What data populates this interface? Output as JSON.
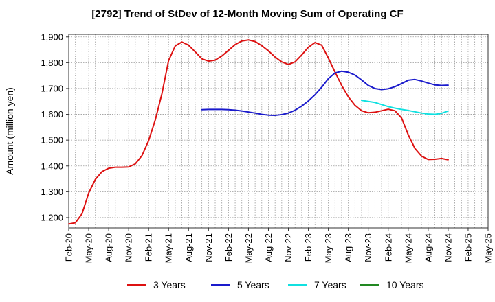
{
  "chart_data": {
    "type": "line",
    "title": "[2792]  Trend of StDev of 12-Month Moving Sum of Operating CF",
    "ylabel": "Amount (million yen)",
    "xlabel": "",
    "ylim": [
      1160,
      1910
    ],
    "y_ticks": [
      1200,
      1300,
      1400,
      1500,
      1600,
      1700,
      1800,
      1900
    ],
    "y_tick_labels": [
      "1,200",
      "1,300",
      "1,400",
      "1,500",
      "1,600",
      "1,700",
      "1,800",
      "1,900"
    ],
    "x_tick_labels": [
      "Feb-20",
      "May-20",
      "Aug-20",
      "Nov-20",
      "Feb-21",
      "May-21",
      "Aug-21",
      "Nov-21",
      "Feb-22",
      "May-22",
      "Aug-22",
      "Nov-22",
      "Feb-23",
      "May-23",
      "Aug-23",
      "Nov-23",
      "Feb-24",
      "May-24",
      "Aug-24",
      "Nov-24",
      "Feb-25",
      "May-25"
    ],
    "x_start": "Feb-20",
    "x_end": "May-25",
    "grid": true,
    "legend_position": "bottom",
    "series": [
      {
        "name": "3 Years",
        "color": "#dd1111",
        "start": "Feb-20",
        "values": [
          1175,
          1180,
          1215,
          1295,
          1348,
          1378,
          1391,
          1395,
          1395,
          1396,
          1408,
          1440,
          1498,
          1578,
          1680,
          1808,
          1865,
          1880,
          1868,
          1842,
          1815,
          1806,
          1810,
          1826,
          1848,
          1870,
          1884,
          1888,
          1882,
          1866,
          1846,
          1822,
          1803,
          1793,
          1803,
          1830,
          1860,
          1878,
          1868,
          1818,
          1764,
          1712,
          1668,
          1635,
          1614,
          1606,
          1608,
          1614,
          1620,
          1614,
          1586,
          1521,
          1468,
          1438,
          1425,
          1426,
          1429,
          1424
        ]
      },
      {
        "name": "5 Years",
        "color": "#1a1acc",
        "start": "Feb-20",
        "values": [
          null,
          null,
          null,
          null,
          null,
          null,
          null,
          null,
          null,
          null,
          null,
          null,
          null,
          null,
          null,
          null,
          null,
          null,
          null,
          null,
          1618,
          1619,
          1619,
          1619,
          1618,
          1616,
          1613,
          1609,
          1605,
          1600,
          1597,
          1596,
          1599,
          1605,
          1616,
          1632,
          1652,
          1676,
          1705,
          1738,
          1760,
          1767,
          1763,
          1752,
          1733,
          1712,
          1700,
          1696,
          1699,
          1707,
          1719,
          1732,
          1735,
          1729,
          1721,
          1714,
          1712,
          1713
        ]
      },
      {
        "name": "7 Years",
        "color": "#11e0e0",
        "start": "Feb-20",
        "values": [
          null,
          null,
          null,
          null,
          null,
          null,
          null,
          null,
          null,
          null,
          null,
          null,
          null,
          null,
          null,
          null,
          null,
          null,
          null,
          null,
          null,
          null,
          null,
          null,
          null,
          null,
          null,
          null,
          null,
          null,
          null,
          null,
          null,
          null,
          null,
          null,
          null,
          null,
          null,
          null,
          null,
          null,
          null,
          null,
          1654,
          1650,
          1646,
          1638,
          1630,
          1624,
          1619,
          1615,
          1610,
          1605,
          1601,
          1600,
          1604,
          1613
        ]
      },
      {
        "name": "10 Years",
        "color": "#228822",
        "start": "Feb-20",
        "values": []
      }
    ]
  }
}
